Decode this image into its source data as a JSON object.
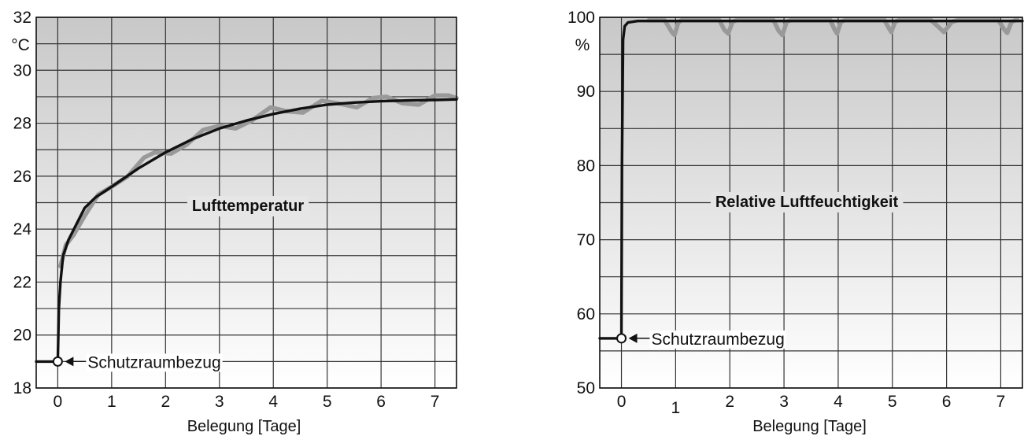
{
  "chart_data": [
    {
      "type": "line",
      "title": "Lufttemperatur",
      "xlabel": "Belegung [Tage]",
      "ylabel": "°C",
      "xlim": [
        -0.4,
        7.4
      ],
      "ylim": [
        18,
        32
      ],
      "xticks": [
        "0",
        "1",
        "2",
        "3",
        "4",
        "5",
        "6",
        "7"
      ],
      "yticks": [
        "18",
        "20",
        "22",
        "24",
        "26",
        "28",
        "30",
        "32"
      ],
      "grid": true,
      "annotation": "Schutzraumbezug",
      "annotation_point": [
        0,
        19
      ],
      "series": [
        {
          "style": "trend",
          "color": "#111111",
          "points": [
            [
              -0.4,
              19
            ],
            [
              0,
              19
            ],
            [
              0.02,
              21
            ],
            [
              0.05,
              22
            ],
            [
              0.1,
              23
            ],
            [
              0.2,
              23.6
            ],
            [
              0.3,
              24
            ],
            [
              0.5,
              24.8
            ],
            [
              0.7,
              25.2
            ],
            [
              1,
              25.6
            ],
            [
              1.5,
              26.3
            ],
            [
              2,
              26.9
            ],
            [
              2.5,
              27.4
            ],
            [
              3,
              27.8
            ],
            [
              3.5,
              28.1
            ],
            [
              4,
              28.35
            ],
            [
              4.5,
              28.55
            ],
            [
              5,
              28.7
            ],
            [
              5.5,
              28.78
            ],
            [
              6,
              28.83
            ],
            [
              6.5,
              28.86
            ],
            [
              7,
              28.88
            ],
            [
              7.4,
              28.9
            ]
          ]
        },
        {
          "style": "measured",
          "color": "#999999",
          "points": [
            [
              0.05,
              22.6
            ],
            [
              0.15,
              23.4
            ],
            [
              0.3,
              23.8
            ],
            [
              0.5,
              24.5
            ],
            [
              0.75,
              25.3
            ],
            [
              1,
              25.6
            ],
            [
              1.3,
              26
            ],
            [
              1.6,
              26.7
            ],
            [
              1.8,
              26.9
            ],
            [
              2.1,
              26.85
            ],
            [
              2.4,
              27.2
            ],
            [
              2.7,
              27.75
            ],
            [
              3,
              27.9
            ],
            [
              3.3,
              27.8
            ],
            [
              3.6,
              28.1
            ],
            [
              3.95,
              28.6
            ],
            [
              4.25,
              28.45
            ],
            [
              4.55,
              28.4
            ],
            [
              4.9,
              28.85
            ],
            [
              5.2,
              28.75
            ],
            [
              5.55,
              28.6
            ],
            [
              5.85,
              28.95
            ],
            [
              6.1,
              29.0
            ],
            [
              6.4,
              28.75
            ],
            [
              6.7,
              28.7
            ],
            [
              7.0,
              29.05
            ],
            [
              7.25,
              29.05
            ],
            [
              7.4,
              28.95
            ]
          ]
        }
      ]
    },
    {
      "type": "line",
      "title": "Relative Luftfeuchtigkeit",
      "xlabel": "Belegung [Tage]",
      "ylabel": "%",
      "xlim": [
        -0.4,
        7.4
      ],
      "ylim": [
        50,
        100
      ],
      "xticks": [
        "0",
        "1",
        "2",
        "3",
        "4",
        "5",
        "6",
        "7"
      ],
      "yticks": [
        "50",
        "60",
        "70",
        "80",
        "90",
        "100"
      ],
      "grid": true,
      "annotation": "Schutzraumbezug",
      "annotation_point": [
        0,
        56.7
      ],
      "series": [
        {
          "style": "trend",
          "color": "#111111",
          "points": [
            [
              -0.4,
              56.7
            ],
            [
              0,
              56.7
            ],
            [
              0.01,
              80
            ],
            [
              0.03,
              97
            ],
            [
              0.06,
              98.8
            ],
            [
              0.12,
              99.3
            ],
            [
              0.3,
              99.5
            ],
            [
              7.4,
              99.5
            ]
          ]
        },
        {
          "style": "measured",
          "color": "#999999",
          "points": [
            [
              0.5,
              99.6
            ],
            [
              0.8,
              99.6
            ],
            [
              0.93,
              98.0
            ],
            [
              0.98,
              97.6
            ],
            [
              1.05,
              99.3
            ],
            [
              1.12,
              99.7
            ],
            [
              1.8,
              99.7
            ],
            [
              1.9,
              98.3
            ],
            [
              1.97,
              97.8
            ],
            [
              2.05,
              99.4
            ],
            [
              2.15,
              99.7
            ],
            [
              2.8,
              99.7
            ],
            [
              2.9,
              98.2
            ],
            [
              2.97,
              97.6
            ],
            [
              3.05,
              99.4
            ],
            [
              3.15,
              99.7
            ],
            [
              3.85,
              99.7
            ],
            [
              3.93,
              98.4
            ],
            [
              3.98,
              97.8
            ],
            [
              4.05,
              99.4
            ],
            [
              4.15,
              99.7
            ],
            [
              4.85,
              99.7
            ],
            [
              4.93,
              98.6
            ],
            [
              4.98,
              98.0
            ],
            [
              5.05,
              99.4
            ],
            [
              5.15,
              99.7
            ],
            [
              5.7,
              99.7
            ],
            [
              5.85,
              98.7
            ],
            [
              5.95,
              98.0
            ],
            [
              6.1,
              99.4
            ],
            [
              6.25,
              99.7
            ],
            [
              6.95,
              99.7
            ],
            [
              7.05,
              98.5
            ],
            [
              7.12,
              97.9
            ],
            [
              7.2,
              99.4
            ],
            [
              7.3,
              99.7
            ]
          ]
        }
      ]
    }
  ]
}
